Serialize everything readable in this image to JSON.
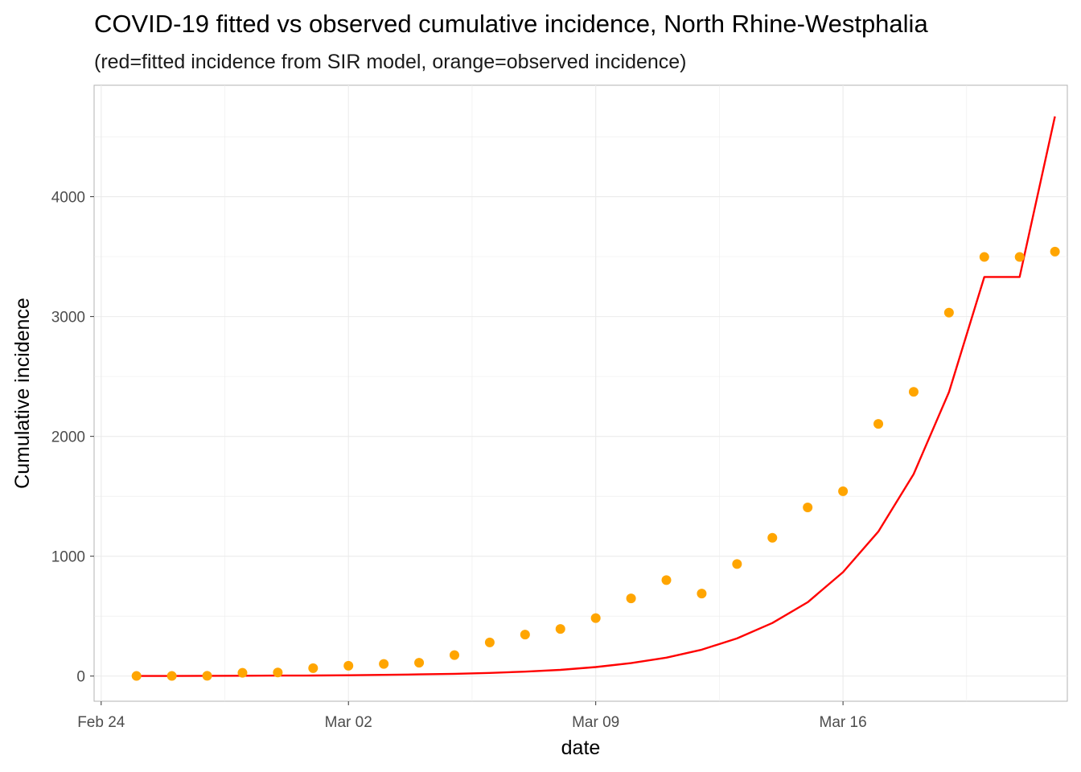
{
  "chart_data": {
    "type": "line",
    "title": "COVID-19 fitted vs observed cumulative incidence, North Rhine-Westphalia",
    "subtitle": "(red=fitted incidence from SIR model, orange=observed incidence)",
    "xlabel": "date",
    "ylabel": "Cumulative incidence",
    "x_ticks": [
      "Feb 24",
      "Mar 02",
      "Mar 09",
      "Mar 16"
    ],
    "y_ticks": [
      "0",
      "1000",
      "2000",
      "3000",
      "4000"
    ],
    "xlim": [
      "2020-02-24",
      "2020-03-22"
    ],
    "ylim": [
      -210,
      4930
    ],
    "grid": true,
    "x": [
      "2020-02-25",
      "2020-02-26",
      "2020-02-27",
      "2020-02-28",
      "2020-02-29",
      "2020-03-01",
      "2020-03-02",
      "2020-03-03",
      "2020-03-04",
      "2020-03-05",
      "2020-03-06",
      "2020-03-07",
      "2020-03-08",
      "2020-03-09",
      "2020-03-10",
      "2020-03-11",
      "2020-03-12",
      "2020-03-13",
      "2020-03-14",
      "2020-03-15",
      "2020-03-16",
      "2020-03-17",
      "2020-03-18",
      "2020-03-19",
      "2020-03-20",
      "2020-03-21",
      "2020-03-22"
    ],
    "series": [
      {
        "kind": "points",
        "color": "#FFA500",
        "values": [
          1,
          1,
          2,
          27,
          30,
          66,
          86,
          101,
          111,
          175,
          281,
          346,
          393,
          484,
          648,
          801,
          688,
          935,
          1154,
          1407,
          1542,
          2104,
          2372,
          3033,
          3497,
          3497,
          3542
        ]
      },
      {
        "kind": "line",
        "color": "#FF0000",
        "values": [
          1,
          1,
          2,
          3,
          4,
          5,
          7,
          10,
          14,
          19,
          26,
          37,
          52,
          75,
          108,
          154,
          220,
          314,
          443,
          616,
          867,
          1205,
          1685,
          2370,
          3330,
          3330,
          4670
        ]
      }
    ]
  }
}
